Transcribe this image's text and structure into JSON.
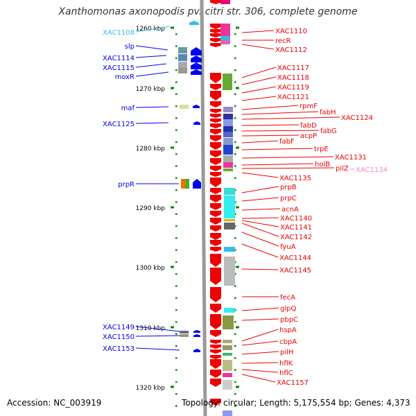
{
  "title": "Xanthomonas axonopodis pv. citri str. 306, complete genome",
  "footer": {
    "accession": "Accession: NC_003919",
    "summary": "Topology: circular; Length: 5,175,554 bp; Genes: 4,373"
  },
  "colors": {
    "forward_strand": "#0000ee",
    "reverse_strand": "#ee0000",
    "highlight_left": "#33bbee",
    "highlight_right": "#ee88cc",
    "backbone": "#999999",
    "tick": "#008800"
  },
  "scale": {
    "unit": "kbp",
    "ticks": [
      "1260 kbp",
      "1270 kbp",
      "1280 kbp",
      "1290 kbp",
      "1300 kbp",
      "1310 kbp",
      "1320 kbp"
    ]
  },
  "left_genes": [
    {
      "name": "XAC1108",
      "color": "#33bbee"
    },
    {
      "name": "slp",
      "color": "#0000ee"
    },
    {
      "name": "XAC1114",
      "color": "#0000ee"
    },
    {
      "name": "XAC1115",
      "color": "#0000ee"
    },
    {
      "name": "moxR",
      "color": "#0000ee"
    },
    {
      "name": "maf",
      "color": "#0000ee"
    },
    {
      "name": "XAC1125",
      "color": "#0000ee"
    },
    {
      "name": "prpR",
      "color": "#0000ee"
    },
    {
      "name": "XAC1149",
      "color": "#0000ee"
    },
    {
      "name": "XAC1150",
      "color": "#0000ee"
    },
    {
      "name": "XAC1153",
      "color": "#0000ee"
    }
  ],
  "right_genes": [
    {
      "name": "XAC1110",
      "color": "#ee0000"
    },
    {
      "name": "recR",
      "color": "#ee0000"
    },
    {
      "name": "XAC1112",
      "color": "#ee0000"
    },
    {
      "name": "XAC1117",
      "color": "#ee0000"
    },
    {
      "name": "XAC1118",
      "color": "#ee0000"
    },
    {
      "name": "XAC1119",
      "color": "#ee0000"
    },
    {
      "name": "XAC1121",
      "color": "#ee0000"
    },
    {
      "name": "rpmF",
      "color": "#ee0000"
    },
    {
      "name": "fabH",
      "color": "#ee0000"
    },
    {
      "name": "XAC1124",
      "color": "#ee0000"
    },
    {
      "name": "fabD",
      "color": "#ee0000"
    },
    {
      "name": "fabG",
      "color": "#ee0000"
    },
    {
      "name": "acpP",
      "color": "#ee0000"
    },
    {
      "name": "fabF",
      "color": "#ee0000"
    },
    {
      "name": "trpE",
      "color": "#ee0000"
    },
    {
      "name": "XAC1131",
      "color": "#ee0000"
    },
    {
      "name": "holB",
      "color": "#ee0000"
    },
    {
      "name": "pilZ",
      "color": "#ee0000"
    },
    {
      "name": "XAC1134",
      "color": "#ee88cc"
    },
    {
      "name": "XAC1135",
      "color": "#ee0000"
    },
    {
      "name": "prpB",
      "color": "#ee0000"
    },
    {
      "name": "prpC",
      "color": "#ee0000"
    },
    {
      "name": "acnA",
      "color": "#ee0000"
    },
    {
      "name": "XAC1140",
      "color": "#ee0000"
    },
    {
      "name": "XAC1141",
      "color": "#ee0000"
    },
    {
      "name": "XAC1142",
      "color": "#ee0000"
    },
    {
      "name": "fyuA",
      "color": "#ee0000"
    },
    {
      "name": "XAC1144",
      "color": "#ee0000"
    },
    {
      "name": "XAC1145",
      "color": "#ee0000"
    },
    {
      "name": "fecA",
      "color": "#ee0000"
    },
    {
      "name": "glpQ",
      "color": "#ee0000"
    },
    {
      "name": "pbpC",
      "color": "#ee0000"
    },
    {
      "name": "hspA",
      "color": "#ee0000"
    },
    {
      "name": "cbpA",
      "color": "#ee0000"
    },
    {
      "name": "pilH",
      "color": "#ee0000"
    },
    {
      "name": "hflK",
      "color": "#ee0000"
    },
    {
      "name": "hflC",
      "color": "#ee0000"
    },
    {
      "name": "XAC1157",
      "color": "#ee0000"
    }
  ]
}
